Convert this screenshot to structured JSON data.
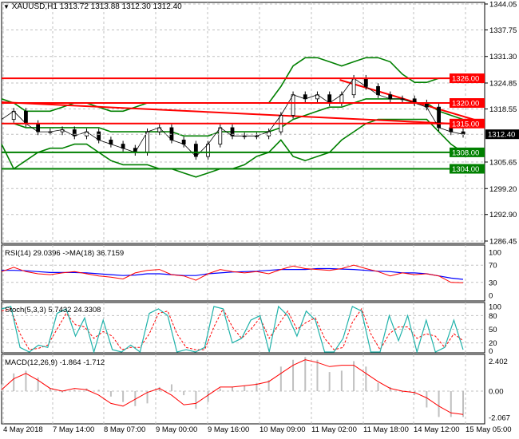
{
  "header": {
    "symbol": "XAUUSD,H1",
    "open": "1313.72",
    "high": "1313.88",
    "low": "1312.30",
    "close": "1312.40"
  },
  "colors": {
    "support": "#008000",
    "resistance": "#ff0000",
    "price_tag": "#000000",
    "rsi": "#ff0000",
    "rsi_ma": "#0000ff",
    "stoch_main": "#20b2aa",
    "stoch_signal": "#ff0000",
    "macd_hist": "#c0c0c0",
    "macd_signal": "#ff0000",
    "bands": "#008000"
  },
  "chart_data": [
    {
      "type": "line",
      "panel": "price",
      "ylim": [
        1286.45,
        1344.05
      ],
      "y_ticks": [
        "1344.05",
        "1337.75",
        "1331.30",
        "1324.85",
        "1318.55",
        "1305.65",
        "1299.20",
        "1292.90",
        "1286.45"
      ],
      "x_ticks": [
        "4 May 2018",
        "7 May 14:00",
        "8 May 07:00",
        "9 May 00:00",
        "9 May 16:00",
        "10 May 09:00",
        "11 May 02:00",
        "11 May 18:00",
        "14 May 12:00",
        "15 May 05:00"
      ],
      "levels": [
        {
          "value": 1326.0,
          "label": "1326.00",
          "kind": "resistance"
        },
        {
          "value": 1320.0,
          "label": "1320.00",
          "kind": "resistance"
        },
        {
          "value": 1315.0,
          "label": "1315.00",
          "kind": "resistance"
        },
        {
          "value": 1308.0,
          "label": "1308.00",
          "kind": "support"
        },
        {
          "value": 1304.0,
          "label": "1304.00",
          "kind": "support"
        }
      ],
      "current_price": {
        "value": 1312.4,
        "label": "1312.40"
      },
      "trend_lines": [
        {
          "from": [
            0,
            1320.2
          ],
          "to": [
            1,
            1314.6
          ]
        },
        {
          "from": [
            0.7,
            1325.6
          ],
          "to": [
            1,
            1315.2
          ]
        }
      ],
      "close": [
        1316,
        1318,
        1315,
        1313,
        1313,
        1313.5,
        1312,
        1313,
        1311,
        1310,
        1309,
        1308,
        1313,
        1314,
        1311,
        1310,
        1307,
        1310,
        1314,
        1312,
        1312,
        1312,
        1313,
        1317,
        1322,
        1321,
        1322,
        1320,
        1322,
        1326,
        1324,
        1322,
        1321,
        1321,
        1320,
        1319,
        1314,
        1313,
        1312.4
      ],
      "bollinger_upper": [
        1321,
        1320,
        1318,
        1318,
        1318,
        1319,
        1320,
        1320,
        1319,
        1318,
        1318,
        1319,
        1320,
        1320,
        1320,
        1320,
        1320,
        1320,
        1320,
        1320,
        1320,
        1320,
        1320,
        1324,
        1329,
        1331,
        1331,
        1330,
        1329,
        1330,
        1331,
        1331,
        1330,
        1327,
        1325,
        1325,
        1326,
        1326,
        1326
      ],
      "bollinger_middle": [
        1315,
        1315,
        1314,
        1314,
        1314,
        1314,
        1314,
        1314,
        1314,
        1313,
        1313,
        1313,
        1313,
        1313,
        1313,
        1312,
        1312,
        1312,
        1313,
        1313,
        1313,
        1313,
        1313,
        1314,
        1316,
        1317,
        1318,
        1319,
        1319,
        1320,
        1321,
        1321,
        1321,
        1321,
        1320,
        1320,
        1318,
        1317,
        1316
      ],
      "bollinger_lower": [
        1310,
        1304,
        1306,
        1308,
        1309,
        1309,
        1310,
        1310,
        1308,
        1306,
        1305,
        1305,
        1305,
        1304,
        1304,
        1303,
        1302,
        1303,
        1304,
        1304,
        1305,
        1307,
        1308,
        1311,
        1307,
        1306,
        1307,
        1308,
        1311,
        1313,
        1315,
        1316,
        1316,
        1316,
        1316,
        1316,
        1313,
        1310,
        1308
      ]
    },
    {
      "type": "line",
      "panel": "rsi",
      "title": "RSI(14) 29.0396  ->MA(18) 36.7159",
      "ylim": [
        0,
        100
      ],
      "y_ticks": [
        "100",
        "70",
        "30",
        "0"
      ],
      "rsi": [
        55,
        65,
        55,
        50,
        48,
        52,
        55,
        50,
        45,
        42,
        38,
        52,
        58,
        60,
        48,
        45,
        35,
        50,
        60,
        55,
        52,
        55,
        50,
        60,
        68,
        62,
        60,
        58,
        62,
        70,
        62,
        55,
        45,
        52,
        48,
        50,
        45,
        30,
        29
      ],
      "ma": [
        58,
        58,
        57,
        55,
        53,
        53,
        53,
        52,
        50,
        48,
        46,
        47,
        50,
        50,
        48,
        46,
        46,
        50,
        52,
        54,
        55,
        56,
        58,
        60,
        60,
        60,
        62,
        62,
        61,
        60,
        58,
        56,
        55,
        52,
        52,
        50,
        45,
        40,
        37
      ]
    },
    {
      "type": "line",
      "panel": "stochastic",
      "title": "Stoch(5,3,3) 5.7432 24.3308",
      "ylim": [
        0,
        100
      ],
      "y_ticks": [
        "100",
        "80",
        "50",
        "20",
        "0"
      ],
      "main": [
        95,
        100,
        10,
        0,
        15,
        10,
        85,
        95,
        35,
        75,
        0,
        70,
        5,
        0,
        15,
        0,
        85,
        95,
        80,
        0,
        5,
        0,
        10,
        100,
        95,
        20,
        30,
        70,
        80,
        0,
        100,
        80,
        35,
        90,
        70,
        0,
        0,
        30,
        100,
        90,
        0,
        0,
        80,
        25,
        80,
        0,
        70,
        0,
        10,
        70,
        5
      ],
      "signal": [
        90,
        95,
        40,
        5,
        8,
        15,
        50,
        85,
        60,
        55,
        30,
        45,
        35,
        5,
        10,
        10,
        40,
        85,
        90,
        40,
        10,
        5,
        5,
        55,
        95,
        55,
        30,
        50,
        75,
        30,
        60,
        90,
        50,
        65,
        75,
        30,
        5,
        10,
        65,
        95,
        40,
        5,
        40,
        55,
        55,
        30,
        40,
        35,
        10,
        40,
        25
      ]
    },
    {
      "type": "bar+line",
      "panel": "macd",
      "title": "MACD(12,26,9) -1.864 -1.712",
      "ylim": [
        -2.4,
        2.6
      ],
      "y_ticks": [
        "2.402",
        "0.00",
        "-2.067"
      ],
      "histogram": [
        0.5,
        1.3,
        1.5,
        1.0,
        0.2,
        -0.1,
        0.1,
        0.2,
        0.1,
        -0.4,
        -0.8,
        -1.1,
        -0.9,
        0.3,
        0.5,
        -0.3,
        -1.3,
        -0.8,
        0.2,
        0.3,
        0.4,
        0.6,
        0.8,
        1.8,
        2.3,
        2.5,
        2.3,
        1.4,
        1.5,
        2.2,
        1.8,
        0.6,
        0.3,
        -0.1,
        -0.3,
        -1.2,
        -1.9,
        -1.9,
        -1.9
      ],
      "signal": [
        0.1,
        0.9,
        1.3,
        0.8,
        0.2,
        0.0,
        0.2,
        0.1,
        -0.3,
        -0.9,
        -1.1,
        -0.6,
        -0.1,
        0.2,
        -0.3,
        -1.0,
        -0.9,
        -0.3,
        0.3,
        0.3,
        0.4,
        0.5,
        0.7,
        1.3,
        1.9,
        2.3,
        2.1,
        1.8,
        1.9,
        1.9,
        1.3,
        0.7,
        0.2,
        0.0,
        -0.1,
        -0.5,
        -1.1,
        -1.6,
        -1.71
      ]
    }
  ]
}
